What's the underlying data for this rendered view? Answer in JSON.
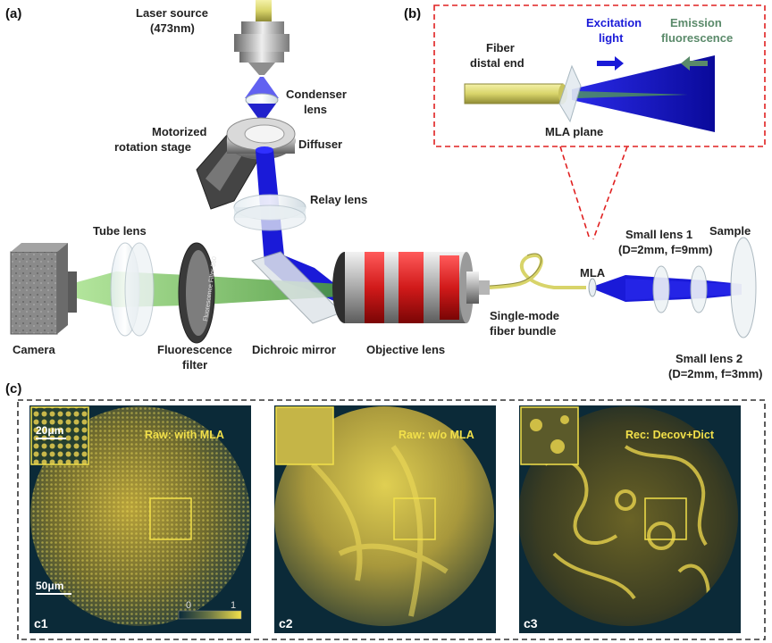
{
  "panels": {
    "a": "(a)",
    "b": "(b)",
    "c": "(c)"
  },
  "labels": {
    "laser_l1": "Laser source",
    "laser_l2": "(473nm)",
    "condenser_l1": "Condenser",
    "condenser_l2": "lens",
    "motor_l1": "Motorized",
    "motor_l2": "rotation stage",
    "diffuser": "Diffuser",
    "relay": "Relay lens",
    "tube": "Tube lens",
    "camera": "Camera",
    "filter_l1": "Fluorescence",
    "filter_l2": "filter",
    "filter_ring": "Fluorescence Filter 550",
    "dichroic": "Dichroic mirror",
    "objective": "Objective lens",
    "smf_l1": "Single-mode",
    "smf_l2": "fiber bundle",
    "mla": "MLA",
    "sl1_l1": "Small lens 1",
    "sl1_l2": "(D=2mm, f=9mm)",
    "sample": "Sample",
    "sl2_l1": "Small lens 2",
    "sl2_l2": "(D=2mm, f=3mm)"
  },
  "inset_b": {
    "fiber_l1": "Fiber",
    "fiber_l2": "distal end",
    "exc_l1": "Excitation",
    "exc_l2": "light",
    "em_l1": "Emission",
    "em_l2": "fluorescence",
    "mla_plane": "MLA plane"
  },
  "images": [
    {
      "title": "Raw: with MLA",
      "tag": "c1",
      "scale_inset": "20μm",
      "scale_main": "50μm"
    },
    {
      "title": "Raw: w/o MLA",
      "tag": "c2"
    },
    {
      "title": "Rec: Decov+Dict",
      "tag": "c3"
    }
  ],
  "colorbar": {
    "min": "0",
    "max": "1"
  },
  "colors": {
    "excitation": "#1a1ad8",
    "emission": "#5aa84a",
    "fiber": "#d8d46a",
    "image_yellow": "#f2e04a",
    "objective_red": "#d11a1a",
    "dash_red": "#e02020"
  }
}
